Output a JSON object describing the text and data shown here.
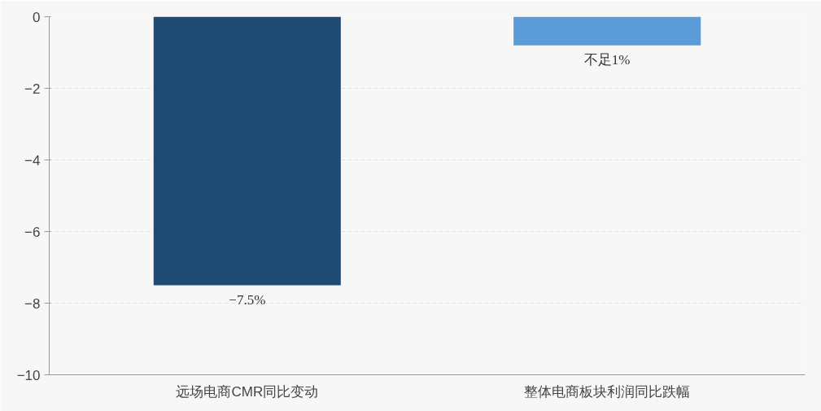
{
  "chart_data": {
    "type": "bar",
    "categories": [
      "远场电商CMR同比变动",
      "整体电商板块利润同比跌幅"
    ],
    "values": [
      -7.5,
      -0.8
    ],
    "colors": [
      "#1f4a74",
      "#5a9bd8"
    ],
    "value_labels": [
      "−7.5%",
      "不足1%"
    ],
    "ylim": [
      -10,
      0
    ],
    "yticks": [
      {
        "value": 0,
        "label": "0"
      },
      {
        "value": -2,
        "label": "−2"
      },
      {
        "value": -4,
        "label": "−4"
      },
      {
        "value": -6,
        "label": "−6"
      },
      {
        "value": -8,
        "label": "−8"
      },
      {
        "value": -10,
        "label": "−10"
      }
    ],
    "grid": "y"
  }
}
